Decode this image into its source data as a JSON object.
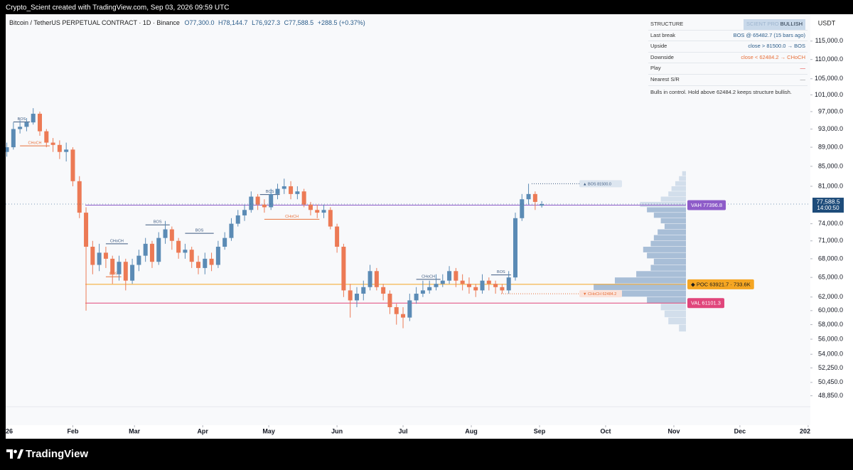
{
  "watermark": "Crypto_Scient created with TradingView.com, Sep 03, 2026 09:59 UTC",
  "brand": "TradingView",
  "chart_data": {
    "type": "candlestick",
    "title": "Bitcoin / TetherUS PERPETUAL CONTRACT · 1D · Binance",
    "legend_values": [
      "O77,300.0",
      "H78,144.7",
      "L76,927.3",
      "C77,588.5"
    ],
    "change": "+288.5 (+0.37%)",
    "y_unit": "USDT",
    "log_scale": true,
    "up_color": "#5b8bb5",
    "down_color": "#ec7a55",
    "x": [
      1,
      4,
      7,
      10,
      13,
      16,
      19,
      22,
      25,
      28,
      31,
      34,
      37,
      40,
      43,
      46,
      49,
      52,
      55,
      58,
      61,
      64,
      67,
      70,
      73,
      76,
      79,
      82,
      85,
      88,
      91,
      94,
      97,
      100,
      103,
      106,
      109,
      112,
      115,
      118,
      121,
      124,
      127,
      130,
      133,
      136,
      139,
      142,
      145,
      148,
      151,
      154,
      157,
      160,
      163,
      166,
      169,
      172,
      175,
      178,
      181,
      184,
      187,
      190,
      193,
      196,
      199,
      202,
      205,
      208,
      211,
      214,
      217,
      220,
      223,
      226,
      229,
      232,
      235,
      238,
      241,
      244
    ],
    "open": [
      88000,
      89000,
      93000,
      93500,
      94500,
      96500,
      92500,
      90000,
      89500,
      88000,
      88500,
      82000,
      76000,
      70000,
      67000,
      69000,
      68000,
      65500,
      67500,
      64500,
      67000,
      68500,
      70500,
      67500,
      71500,
      73000,
      71000,
      69000,
      69500,
      67500,
      66500,
      68000,
      67000,
      70000,
      71500,
      74000,
      75500,
      76500,
      79000,
      77500,
      77000,
      79500,
      80500,
      81000,
      79500,
      80000,
      77500,
      76500,
      76000,
      76500,
      73500,
      70000,
      63000,
      61500,
      62500,
      63500,
      66000,
      63500,
      62500,
      60500,
      59500,
      59000,
      61500,
      62500,
      63000,
      63500,
      64000,
      64500,
      66000,
      64500,
      64000,
      63500,
      63000,
      64500,
      64000,
      63500,
      63000,
      65000,
      75000,
      78500,
      79500,
      77300
    ],
    "high": [
      90000,
      94500,
      95000,
      95500,
      97800,
      97000,
      93000,
      91000,
      90500,
      90000,
      89000,
      83000,
      77000,
      71000,
      70500,
      70000,
      68500,
      68500,
      68000,
      68000,
      69500,
      71500,
      71000,
      72500,
      74500,
      73500,
      71500,
      70500,
      70000,
      68500,
      69000,
      69000,
      71000,
      72500,
      75000,
      76500,
      77500,
      80000,
      79500,
      78500,
      80500,
      81500,
      82500,
      82000,
      81000,
      80500,
      78000,
      77500,
      77500,
      77000,
      74000,
      70500,
      64000,
      63500,
      64500,
      67000,
      66500,
      64000,
      63000,
      61000,
      60500,
      62500,
      63500,
      64500,
      64500,
      65500,
      65500,
      66800,
      66500,
      65500,
      65000,
      64000,
      65500,
      65000,
      64500,
      64000,
      66000,
      76000,
      79500,
      81500,
      80000,
      78144.7
    ],
    "low": [
      87000,
      88500,
      92000,
      92500,
      94000,
      91500,
      89000,
      88000,
      86500,
      86000,
      81000,
      75000,
      60000,
      65500,
      66000,
      66500,
      64000,
      64500,
      63000,
      64000,
      66000,
      67500,
      66500,
      67000,
      70500,
      69500,
      68000,
      68000,
      66500,
      65500,
      65500,
      66000,
      66500,
      69500,
      71000,
      73500,
      74500,
      76000,
      76500,
      76000,
      76500,
      78500,
      79500,
      78500,
      78500,
      77000,
      75500,
      75000,
      75000,
      73000,
      69000,
      62000,
      59000,
      60500,
      61500,
      63000,
      63000,
      61500,
      59500,
      58000,
      57500,
      58500,
      61000,
      62000,
      62500,
      63000,
      63500,
      64000,
      63500,
      63000,
      62500,
      62000,
      62500,
      63000,
      62500,
      62500,
      62500,
      64500,
      74500,
      77500,
      76500,
      76927.3
    ],
    "close": [
      89000,
      93000,
      93500,
      94500,
      96500,
      92500,
      90000,
      89500,
      88000,
      88500,
      82000,
      76000,
      70000,
      67000,
      69000,
      68000,
      65500,
      67500,
      64500,
      67000,
      68500,
      70500,
      67500,
      71500,
      73000,
      71000,
      69000,
      69500,
      67500,
      66500,
      68000,
      67000,
      70000,
      71500,
      74000,
      75500,
      76500,
      79000,
      77500,
      77000,
      79500,
      80500,
      81000,
      79500,
      80000,
      77500,
      76500,
      76000,
      76500,
      73500,
      70000,
      63000,
      61500,
      62500,
      63500,
      66000,
      63500,
      62500,
      60500,
      59500,
      59000,
      61500,
      62500,
      63000,
      63500,
      64000,
      64500,
      66000,
      64500,
      64000,
      63500,
      63000,
      64500,
      64000,
      63500,
      63000,
      65000,
      75000,
      78500,
      79500,
      78000,
      77588.5
    ],
    "xlim": [
      0.5,
      366
    ],
    "xticks": [
      {
        "value": 0,
        "label": "26"
      },
      {
        "value": 31,
        "label": "Feb"
      },
      {
        "value": 59,
        "label": "Mar"
      },
      {
        "value": 90,
        "label": "Apr"
      },
      {
        "value": 120,
        "label": "May"
      },
      {
        "value": 151,
        "label": "Jun"
      },
      {
        "value": 181,
        "label": "Jul"
      },
      {
        "value": 212,
        "label": "Aug"
      },
      {
        "value": 243,
        "label": "Sep"
      },
      {
        "value": 273,
        "label": "Oct"
      },
      {
        "value": 304,
        "label": "Nov"
      },
      {
        "value": 334,
        "label": "Dec"
      },
      {
        "value": 365,
        "label": "202"
      }
    ],
    "ylim": [
      45500,
      122700
    ],
    "yticks": [
      {
        "value": 115000,
        "label": "115,000.0"
      },
      {
        "value": 110000,
        "label": "110,000.0"
      },
      {
        "value": 105000,
        "label": "105,000.0"
      },
      {
        "value": 101000,
        "label": "101,000.0"
      },
      {
        "value": 97000,
        "label": "97,000.0"
      },
      {
        "value": 93000,
        "label": "93,000.0"
      },
      {
        "value": 89000,
        "label": "89,000.0"
      },
      {
        "value": 85000,
        "label": "85,000.0"
      },
      {
        "value": 81000,
        "label": "81,000.0"
      },
      {
        "value": 74000,
        "label": "74,000.0"
      },
      {
        "value": 71000,
        "label": "71,000.0"
      },
      {
        "value": 68000,
        "label": "68,000.0"
      },
      {
        "value": 65000,
        "label": "65,000.0"
      },
      {
        "value": 62000,
        "label": "62,000.0"
      },
      {
        "value": 60000,
        "label": "60,000.0"
      },
      {
        "value": 58000,
        "label": "58,000.0"
      },
      {
        "value": 56000,
        "label": "56,000.0"
      },
      {
        "value": 54000,
        "label": "54,000.0"
      },
      {
        "value": 52250,
        "label": "52,250.0"
      },
      {
        "value": 50450,
        "label": "50,450.0"
      },
      {
        "value": 48850,
        "label": "48,850.0"
      }
    ],
    "last_price": {
      "value": 77588.5,
      "label": "77,588.5"
    },
    "countdown": "14:00:50",
    "structure_lines": [
      {
        "label": "BOS",
        "level": 94600,
        "from": 4,
        "to": 11.5,
        "color": "#3d5a80"
      },
      {
        "label": "CHoCH",
        "level": 89300,
        "from": 7,
        "to": 20.5,
        "color": "#e8703a"
      },
      {
        "label": "CHoCH",
        "level": 70500,
        "from": 46,
        "to": 56,
        "color": "#3d5a80"
      },
      {
        "label": "BOS",
        "level": 65100,
        "from": 46,
        "to": 53,
        "color": "#e8703a"
      },
      {
        "label": "BOS",
        "level": 73800,
        "from": 64,
        "to": 75,
        "color": "#3d5a80"
      },
      {
        "label": "BOS",
        "level": 72300,
        "from": 82,
        "to": 95,
        "color": "#3d5a80"
      },
      {
        "label": "BOS",
        "level": 79400,
        "from": 116,
        "to": 125,
        "color": "#3d5a80"
      },
      {
        "label": "CHoCH",
        "level": 74800,
        "from": 118,
        "to": 143,
        "color": "#e8703a"
      },
      {
        "label": "CHoCH",
        "level": 64700,
        "from": 187,
        "to": 198,
        "color": "#3d5a80"
      },
      {
        "label": "BOS",
        "level": 65400,
        "from": 221,
        "to": 230,
        "color": "#3d5a80"
      }
    ],
    "annotations": [
      {
        "label": "▲ BOS  81500.0",
        "level": 81500,
        "color": "#3d5a80",
        "fill": "#dde6f0"
      },
      {
        "label": "▼ CHoCH  62484.2",
        "level": 62484.2,
        "color": "#e8703a",
        "fill": "#fbe3da"
      }
    ],
    "levels": [
      {
        "value": 77396.8,
        "label": "VAH  77396.8",
        "color": "#8e5cc9",
        "text_color": "#ffffff"
      },
      {
        "value": 63921.7,
        "label": "◆ POC  63921.7 · 733.6K",
        "color": "#f5a623",
        "text_color": "#1c1c1c"
      },
      {
        "value": 61101.3,
        "label": "VAL  61101.3",
        "color": "#e0457b",
        "text_color": "#ffffff"
      }
    ],
    "profile": {
      "bins": [
        57000,
        58000,
        59000,
        60000,
        61000,
        62000,
        63000,
        64000,
        65000,
        66000,
        67000,
        68000,
        69000,
        70000,
        71000,
        72000,
        73000,
        74000,
        75000,
        76000,
        77000,
        78000,
        79000,
        80000,
        81000,
        82000,
        83000,
        84000
      ],
      "values": [
        55,
        140,
        170,
        200,
        310,
        510,
        733.6,
        565,
        395,
        280,
        255,
        310,
        340,
        280,
        255,
        225,
        170,
        200,
        255,
        310,
        365,
        200,
        140,
        115,
        85,
        55,
        30
      ],
      "xlim": [
        0,
        740
      ],
      "color": "#c6d4e6",
      "value_area_color": "#8ea9cb"
    }
  },
  "panel": {
    "title": "STRUCTURE",
    "badge_faded": "SCIENT PRO",
    "badge": "BULLISH",
    "rows": [
      {
        "label": "Last break",
        "value": "BOS @ 65482.7  (15 bars ago)",
        "color": "#2b5d8a"
      },
      {
        "label": "Upside",
        "value": "close > 81500.0 → BOS",
        "color": "#2b5d8a"
      },
      {
        "label": "Downside",
        "value": "close < 62484.2 → CHoCH",
        "color": "#e8703a"
      },
      {
        "label": "Play",
        "value": "—",
        "color": "#e53935"
      },
      {
        "label": "Nearest S/R",
        "value": "—",
        "color": "#888888"
      }
    ],
    "footer": "Bulls in control. Hold above 62484.2 keeps structure bullish."
  }
}
